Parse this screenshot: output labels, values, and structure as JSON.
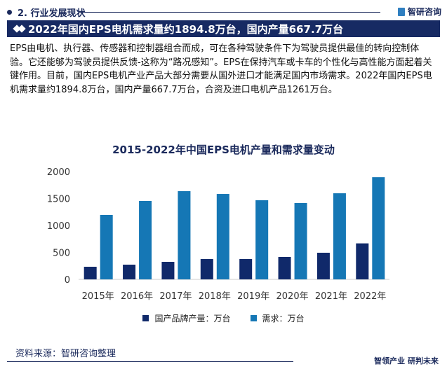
{
  "header": {
    "section": "2. 行业发展现状",
    "brand": "智研咨询",
    "title": "2022年国内EPS电机需求量约1894.8万台，国内产量667.7万台"
  },
  "body_text": "EPS由电机、执行器、传感器和控制器组合而成，可在各种驾驶条件下为驾驶员提供最佳的转向控制体验。它还能够为驾驶员提供反馈-这称为“路况感知”。EPS在保持汽车或卡车的个性化与高性能方面起着关键作用。目前，国内EPS电机产业产品大部分需要从国外进口才能满足国内市场需求。2022年国内EPS电机需求量约1894.8万台，国内产量667.7万台，合资及进口电机产品1261万台。",
  "chart_data": {
    "type": "bar",
    "title": "2015-2022年中国EPS电机产量和需求量变动",
    "categories": [
      "2015年",
      "2016年",
      "2017年",
      "2018年",
      "2019年",
      "2020年",
      "2021年",
      "2022年"
    ],
    "series": [
      {
        "name": "国产品牌产量：万台",
        "color": "#10296a",
        "values": [
          234,
          273,
          325,
          377,
          377,
          416,
          494,
          667.7
        ]
      },
      {
        "name": "需求：万台",
        "color": "#1577b5",
        "values": [
          1195,
          1455,
          1636,
          1584,
          1468,
          1416,
          1597,
          1894.8
        ]
      }
    ],
    "ylim": [
      0,
      2000
    ],
    "yticks": [
      "0",
      "500",
      "1000",
      "1500",
      "2000"
    ],
    "grid": false,
    "legend": "bottom"
  },
  "footer": {
    "source": "资料来源：智研咨询整理",
    "slogan": "智领产业 研判未来"
  }
}
